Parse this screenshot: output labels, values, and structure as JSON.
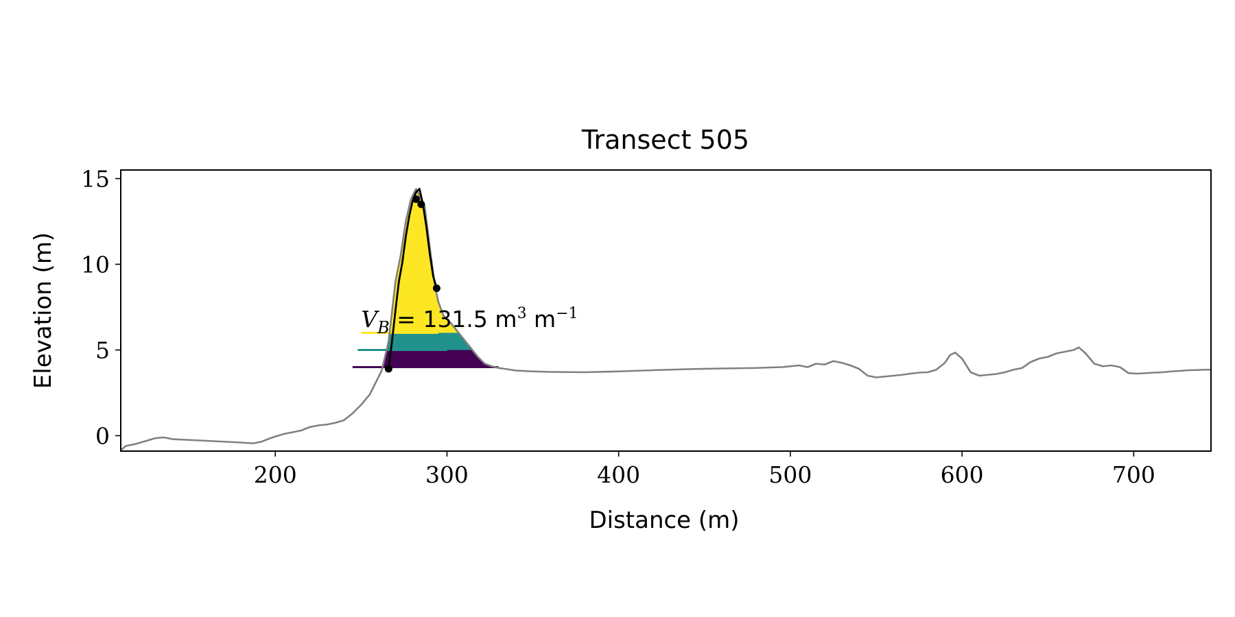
{
  "chart_data": {
    "type": "area",
    "title": "Transect 505",
    "xlabel": "Distance (m)",
    "ylabel": "Elevation (m)",
    "xlim": [
      110,
      745
    ],
    "ylim": [
      -0.9,
      15.5
    ],
    "xticks": [
      200,
      300,
      400,
      500,
      600,
      700
    ],
    "yticks": [
      0,
      5,
      10,
      15
    ],
    "grid": false,
    "legend": "none",
    "annotation": {
      "symbol": "V",
      "subscript": "B",
      "value_text": "= 131.5 m",
      "unit_exp_1": "3",
      "unit_mid": " m",
      "unit_exp_2": "−1",
      "x": 250,
      "y": 6.1
    },
    "colors": {
      "profile": "#808080",
      "dune_outline": "#000000",
      "band_top": "#fde725",
      "band_mid": "#21918c",
      "band_low": "#440154"
    },
    "profile": {
      "x": [
        110,
        113,
        118,
        125,
        130,
        135,
        140,
        150,
        160,
        170,
        180,
        187,
        192,
        197,
        200,
        205,
        210,
        215,
        220,
        225,
        230,
        235,
        240,
        245,
        250,
        255,
        258,
        262,
        266,
        270,
        273,
        276,
        279,
        282,
        284,
        287,
        290,
        293,
        295,
        298,
        302,
        306,
        310,
        314,
        318,
        322,
        326,
        330,
        335,
        340,
        350,
        360,
        380,
        400,
        420,
        440,
        460,
        480,
        495,
        505,
        510,
        515,
        520,
        525,
        530,
        535,
        540,
        545,
        550,
        555,
        560,
        565,
        570,
        575,
        580,
        585,
        590,
        593,
        596,
        600,
        605,
        610,
        615,
        620,
        625,
        630,
        635,
        640,
        645,
        650,
        655,
        660,
        665,
        668,
        672,
        677,
        682,
        687,
        692,
        697,
        702,
        707,
        712,
        717,
        722,
        727,
        732,
        737,
        741,
        745
      ],
      "y": [
        -0.85,
        -0.6,
        -0.5,
        -0.3,
        -0.15,
        -0.1,
        -0.2,
        -0.25,
        -0.3,
        -0.35,
        -0.4,
        -0.45,
        -0.35,
        -0.15,
        -0.05,
        0.1,
        0.2,
        0.3,
        0.5,
        0.6,
        0.65,
        0.75,
        0.9,
        1.3,
        1.8,
        2.4,
        3.0,
        3.8,
        5.5,
        9.0,
        10.5,
        12.5,
        13.8,
        14.4,
        14.0,
        13.4,
        11.0,
        8.7,
        7.8,
        7.0,
        6.6,
        6.1,
        5.6,
        5.1,
        4.6,
        4.2,
        4.05,
        3.95,
        3.88,
        3.8,
        3.75,
        3.72,
        3.7,
        3.75,
        3.82,
        3.88,
        3.92,
        3.95,
        4.0,
        4.1,
        4.0,
        4.2,
        4.15,
        4.35,
        4.25,
        4.1,
        3.9,
        3.5,
        3.4,
        3.45,
        3.5,
        3.55,
        3.62,
        3.68,
        3.7,
        3.85,
        4.25,
        4.7,
        4.85,
        4.5,
        3.7,
        3.5,
        3.55,
        3.6,
        3.7,
        3.85,
        3.95,
        4.3,
        4.5,
        4.6,
        4.8,
        4.9,
        5.0,
        5.15,
        4.8,
        4.2,
        4.05,
        4.1,
        4.0,
        3.65,
        3.62,
        3.65,
        3.68,
        3.7,
        3.75,
        3.78,
        3.82,
        3.83,
        3.85,
        3.85
      ]
    },
    "dune": {
      "x": [
        266,
        268,
        270,
        272,
        274,
        276,
        278,
        280,
        282,
        284,
        286,
        288,
        290,
        292,
        294
      ],
      "y": [
        3.9,
        5.5,
        7.3,
        9.0,
        10.1,
        11.6,
        12.8,
        13.7,
        14.2,
        14.4,
        13.5,
        12.2,
        10.6,
        9.3,
        8.6
      ]
    },
    "dune_points": [
      {
        "x": 266,
        "y": 3.9
      },
      {
        "x": 282,
        "y": 13.8
      },
      {
        "x": 285,
        "y": 13.5
      },
      {
        "x": 294,
        "y": 8.6
      }
    ],
    "bands": [
      {
        "name": "top",
        "lower": 6.0,
        "upper": 15.0,
        "line_y": 6.0,
        "line_x": [
          250,
          295
        ]
      },
      {
        "name": "mid",
        "lower": 5.0,
        "upper": 6.0,
        "line_y": 5.0,
        "line_x": [
          248,
          300
        ]
      },
      {
        "name": "low",
        "lower": 4.0,
        "upper": 5.0,
        "line_y": 4.0,
        "line_x": [
          245,
          330
        ]
      }
    ]
  }
}
